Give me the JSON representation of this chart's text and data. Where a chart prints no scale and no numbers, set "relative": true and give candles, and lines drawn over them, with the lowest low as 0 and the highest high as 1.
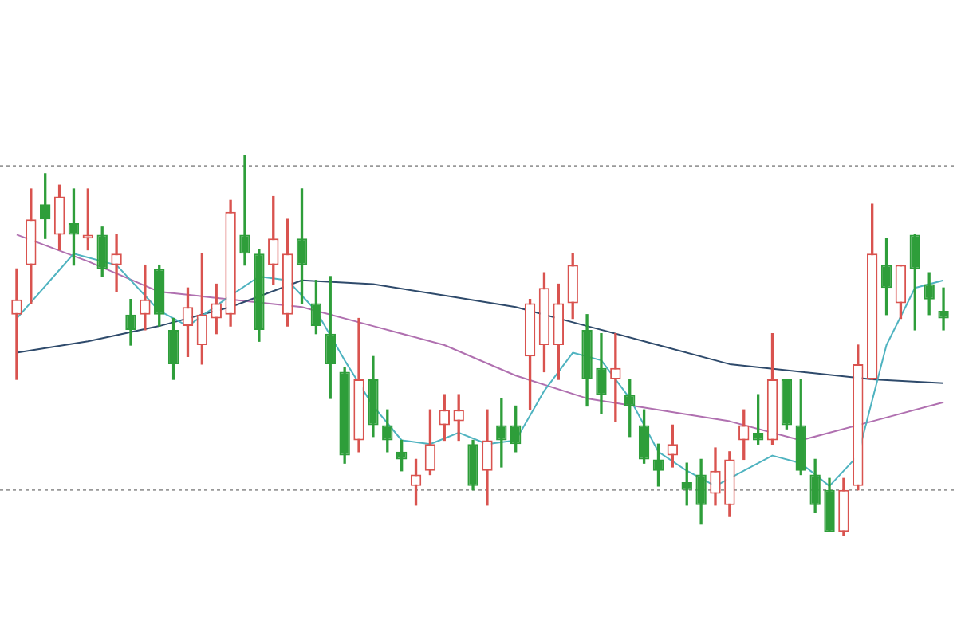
{
  "chart_data": {
    "type": "candlestick",
    "relative": true,
    "legend": false,
    "categories": [
      null,
      null,
      null,
      null,
      null,
      null,
      null,
      null,
      null,
      null,
      null,
      null,
      null,
      null,
      null,
      null,
      null,
      null,
      null,
      null,
      null,
      null,
      null,
      null,
      null,
      null,
      null,
      null,
      null,
      null,
      null,
      null,
      null,
      null,
      null,
      null,
      null,
      null,
      null,
      null,
      null,
      null,
      null,
      null,
      null,
      null,
      null,
      null,
      null,
      null,
      null,
      null,
      null,
      null,
      null,
      null,
      null,
      null,
      null,
      null,
      null,
      null,
      null,
      null,
      null,
      null
    ],
    "ohlc": [
      [
        0.58,
        0.7,
        0.41,
        0.62
      ],
      [
        0.71,
        0.91,
        0.61,
        0.83
      ],
      [
        0.87,
        0.95,
        0.78,
        0.83
      ],
      [
        0.79,
        0.92,
        0.75,
        0.89
      ],
      [
        0.82,
        0.91,
        0.71,
        0.79
      ],
      [
        0.78,
        0.91,
        0.75,
        0.79
      ],
      [
        0.79,
        0.81,
        0.68,
        0.7
      ],
      [
        0.71,
        0.79,
        0.64,
        0.74
      ],
      [
        0.58,
        0.62,
        0.5,
        0.54
      ],
      [
        0.58,
        0.71,
        0.54,
        0.62
      ],
      [
        0.7,
        0.71,
        0.55,
        0.58
      ],
      [
        0.54,
        0.57,
        0.41,
        0.45
      ],
      [
        0.55,
        0.65,
        0.47,
        0.6
      ],
      [
        0.5,
        0.74,
        0.45,
        0.58
      ],
      [
        0.57,
        0.66,
        0.53,
        0.61
      ],
      [
        0.58,
        0.88,
        0.55,
        0.85
      ],
      [
        0.79,
        1,
        0.71,
        0.74
      ],
      [
        0.74,
        0.75,
        0.51,
        0.54
      ],
      [
        0.71,
        0.89,
        0.66,
        0.78
      ],
      [
        0.58,
        0.83,
        0.55,
        0.74
      ],
      [
        0.78,
        0.91,
        0.61,
        0.71
      ],
      [
        0.61,
        0.67,
        0.53,
        0.55
      ],
      [
        0.53,
        0.68,
        0.36,
        0.45
      ],
      [
        0.43,
        0.44,
        0.19,
        0.21
      ],
      [
        0.25,
        0.57,
        0.22,
        0.41
      ],
      [
        0.41,
        0.47,
        0.26,
        0.29
      ],
      [
        0.29,
        0.33,
        0.22,
        0.25
      ],
      [
        0.22,
        0.25,
        0.17,
        0.2
      ],
      [
        0.13,
        0.2,
        0.08,
        0.16
      ],
      [
        0.17,
        0.33,
        0.16,
        0.24
      ],
      [
        0.29,
        0.37,
        0.25,
        0.33
      ],
      [
        0.3,
        0.37,
        0.25,
        0.33
      ],
      [
        0.24,
        0.25,
        0.12,
        0.13
      ],
      [
        0.17,
        0.33,
        0.08,
        0.25
      ],
      [
        0.29,
        0.36,
        0.18,
        0.25
      ],
      [
        0.29,
        0.34,
        0.22,
        0.24
      ],
      [
        0.47,
        0.62,
        0.33,
        0.61
      ],
      [
        0.5,
        0.69,
        0.43,
        0.65
      ],
      [
        0.5,
        0.66,
        0.41,
        0.61
      ],
      [
        0.61,
        0.74,
        0.57,
        0.71
      ],
      [
        0.54,
        0.58,
        0.34,
        0.41
      ],
      [
        0.44,
        0.53,
        0.32,
        0.37
      ],
      [
        0.41,
        0.53,
        0.3,
        0.44
      ],
      [
        0.37,
        0.41,
        0.26,
        0.34
      ],
      [
        0.29,
        0.33,
        0.19,
        0.2
      ],
      [
        0.2,
        0.24,
        0.13,
        0.17
      ],
      [
        0.21,
        0.29,
        0.18,
        0.24
      ],
      [
        0.14,
        0.19,
        0.08,
        0.12
      ],
      [
        0.16,
        0.2,
        0.03,
        0.08
      ],
      [
        0.11,
        0.23,
        0.08,
        0.17
      ],
      [
        0.08,
        0.22,
        0.05,
        0.2
      ],
      [
        0.25,
        0.33,
        0.2,
        0.29
      ],
      [
        0.27,
        0.37,
        0.24,
        0.25
      ],
      [
        0.25,
        0.53,
        0.24,
        0.41
      ],
      [
        0.41,
        0.41,
        0.28,
        0.29
      ],
      [
        0.29,
        0.41,
        0.16,
        0.17
      ],
      [
        0.16,
        0.2,
        0.06,
        0.08
      ],
      [
        0.12,
        0.15,
        0.01,
        0.01
      ],
      [
        0.01,
        0.15,
        0,
        0.12
      ],
      [
        0.13,
        0.5,
        0.12,
        0.45
      ],
      [
        0.41,
        0.87,
        0.41,
        0.74
      ],
      [
        0.71,
        0.78,
        0.58,
        0.65
      ],
      [
        0.61,
        0.71,
        0.57,
        0.71
      ],
      [
        0.79,
        0.79,
        0.54,
        0.7
      ],
      [
        0.66,
        0.69,
        0.58,
        0.62
      ],
      [
        0.59,
        0.65,
        0.54,
        0.57
      ]
    ],
    "colors": [
      "#d9534f",
      "#d9534f",
      "#2e9e3a",
      "#d9534f",
      "#2e9e3a",
      "#d9534f",
      "#2e9e3a",
      "#d9534f",
      "#2e9e3a",
      "#d9534f",
      "#2e9e3a",
      "#2e9e3a",
      "#d9534f",
      "#d9534f",
      "#d9534f",
      "#d9534f",
      "#2e9e3a",
      "#2e9e3a",
      "#d9534f",
      "#d9534f",
      "#2e9e3a",
      "#2e9e3a",
      "#2e9e3a",
      "#2e9e3a",
      "#d9534f",
      "#2e9e3a",
      "#2e9e3a",
      "#2e9e3a",
      "#d9534f",
      "#d9534f",
      "#d9534f",
      "#d9534f",
      "#2e9e3a",
      "#d9534f",
      "#2e9e3a",
      "#2e9e3a",
      "#d9534f",
      "#d9534f",
      "#d9534f",
      "#d9534f",
      "#2e9e3a",
      "#2e9e3a",
      "#d9534f",
      "#2e9e3a",
      "#2e9e3a",
      "#2e9e3a",
      "#d9534f",
      "#2e9e3a",
      "#2e9e3a",
      "#d9534f",
      "#d9534f",
      "#d9534f",
      "#2e9e3a",
      "#d9534f",
      "#2e9e3a",
      "#2e9e3a",
      "#2e9e3a",
      "#2e9e3a",
      "#d9534f",
      "#d9534f",
      "#d9534f",
      "#2e9e3a",
      "#d9534f",
      "#2e9e3a",
      "#2e9e3a",
      "#2e9e3a"
    ],
    "series": [
      {
        "type": "line",
        "color": "#4fb3c0",
        "values": [
          0.57,
          null,
          null,
          null,
          0.74,
          null,
          null,
          0.71,
          null,
          null,
          0.59,
          null,
          0.55,
          null,
          null,
          0.63,
          null,
          0.68,
          null,
          0.67,
          null,
          0.59,
          null,
          0.46,
          null,
          0.34,
          null,
          0.25,
          null,
          0.24,
          null,
          0.27,
          null,
          0.24,
          null,
          0.25,
          null,
          0.38,
          null,
          0.48,
          null,
          0.46,
          null,
          0.36,
          null,
          0.22,
          null,
          0.17,
          null,
          0.13,
          null,
          0.17,
          null,
          0.21,
          null,
          0.19,
          null,
          0.13,
          null,
          0.21,
          null,
          0.5,
          null,
          0.65,
          null,
          0.67
        ]
      },
      {
        "type": "line",
        "color": "#2e4a6b",
        "values": [
          0.48,
          null,
          null,
          null,
          null,
          0.51,
          null,
          null,
          null,
          null,
          0.55,
          null,
          null,
          null,
          null,
          0.6,
          null,
          null,
          null,
          null,
          0.67,
          null,
          null,
          null,
          null,
          0.66,
          null,
          null,
          null,
          null,
          0.63,
          null,
          null,
          null,
          null,
          0.6,
          null,
          null,
          null,
          null,
          0.55,
          null,
          null,
          null,
          null,
          0.5,
          null,
          null,
          null,
          null,
          0.45,
          null,
          null,
          null,
          null,
          0.43,
          null,
          null,
          null,
          null,
          0.41,
          null,
          null,
          null,
          null,
          0.4
        ]
      },
      {
        "type": "line",
        "color": "#b070b0",
        "values": [
          0.79,
          null,
          null,
          null,
          null,
          0.72,
          null,
          null,
          null,
          null,
          0.64,
          null,
          null,
          null,
          null,
          0.62,
          null,
          null,
          null,
          null,
          0.6,
          null,
          null,
          null,
          null,
          0.55,
          null,
          null,
          null,
          null,
          0.5,
          null,
          null,
          null,
          null,
          0.42,
          null,
          null,
          null,
          null,
          0.36,
          null,
          null,
          null,
          null,
          0.33,
          null,
          null,
          null,
          null,
          0.3,
          null,
          null,
          null,
          null,
          0.25,
          null,
          null,
          null,
          null,
          0.3,
          null,
          null,
          null,
          null,
          0.35
        ]
      }
    ],
    "ref_lines": [
      {
        "axis": "y",
        "value": 0.97,
        "line_style": "dotted",
        "color": "#999999"
      },
      {
        "axis": "y",
        "value": 0.12,
        "line_style": "dotted",
        "color": "#999999"
      }
    ]
  }
}
